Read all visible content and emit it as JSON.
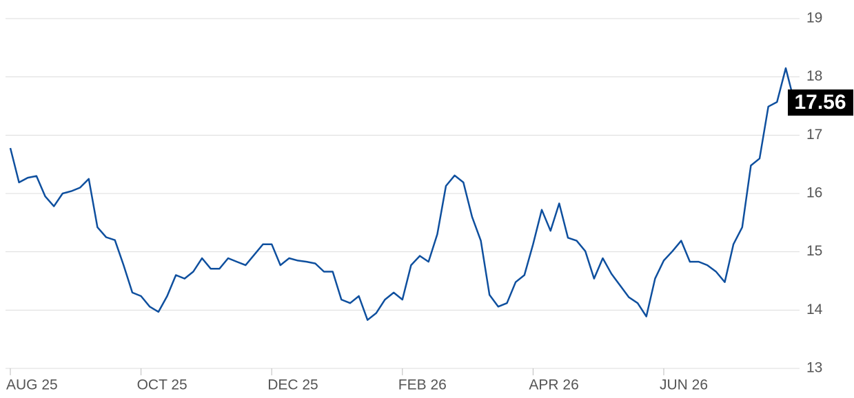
{
  "chart_data": {
    "type": "line",
    "categories": [
      "AUG 25",
      null,
      null,
      null,
      null,
      null,
      null,
      null,
      null,
      null,
      null,
      null,
      null,
      null,
      null,
      "OCT 25",
      null,
      null,
      null,
      null,
      null,
      null,
      null,
      null,
      null,
      null,
      null,
      null,
      null,
      null,
      "DEC 25",
      null,
      null,
      null,
      null,
      null,
      null,
      null,
      null,
      null,
      null,
      null,
      null,
      null,
      null,
      "FEB 26",
      null,
      null,
      null,
      null,
      null,
      null,
      null,
      null,
      null,
      null,
      null,
      null,
      null,
      null,
      "APR 26",
      null,
      null,
      null,
      null,
      null,
      null,
      null,
      null,
      null,
      null,
      null,
      null,
      null,
      null,
      "JUN 26",
      null,
      null,
      null,
      null,
      null,
      null,
      null,
      null,
      null,
      null,
      null,
      null,
      null,
      null,
      null
    ],
    "values": [
      16.78,
      16.19,
      16.27,
      16.3,
      15.95,
      15.78,
      16.0,
      16.04,
      16.1,
      16.25,
      15.42,
      15.25,
      15.2,
      14.77,
      14.3,
      14.24,
      14.06,
      13.97,
      14.24,
      14.6,
      14.54,
      14.66,
      14.89,
      14.71,
      14.71,
      14.89,
      14.83,
      14.77,
      14.95,
      15.13,
      15.13,
      14.77,
      14.89,
      14.85,
      14.83,
      14.8,
      14.66,
      14.66,
      14.18,
      14.12,
      14.24,
      13.83,
      13.95,
      14.18,
      14.3,
      14.18,
      14.77,
      14.93,
      14.83,
      15.3,
      16.13,
      16.31,
      16.19,
      15.6,
      15.19,
      14.26,
      14.06,
      14.12,
      14.48,
      14.6,
      15.13,
      15.72,
      15.36,
      15.83,
      15.24,
      15.19,
      15.01,
      14.54,
      14.89,
      14.62,
      14.42,
      14.22,
      14.12,
      13.89,
      14.54,
      14.85,
      15.01,
      15.19,
      14.83,
      14.83,
      14.77,
      14.66,
      14.48,
      15.13,
      15.42,
      16.48,
      16.6,
      17.49,
      17.57,
      18.15,
      17.56
    ],
    "color": "#0e4f9e",
    "ylim": [
      13,
      19
    ],
    "yticks": [
      13,
      14,
      15,
      16,
      17,
      18,
      19
    ],
    "grid": true
  }
}
